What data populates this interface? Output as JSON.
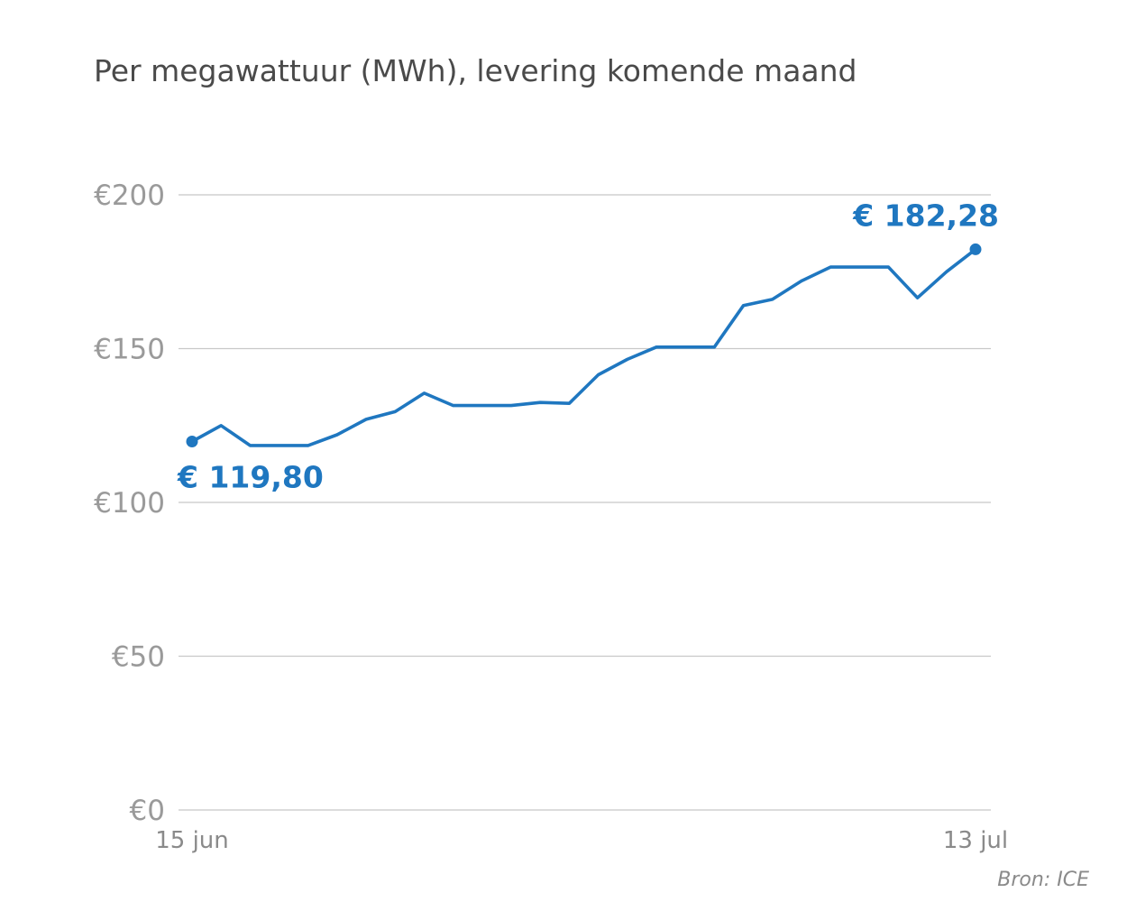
{
  "chart_data": {
    "type": "line",
    "title": "Per megawattuur (MWh), levering komende maand",
    "source": "Bron: ICE",
    "series_color": "#1f77c0",
    "ylim": [
      0,
      200
    ],
    "yticks": [
      {
        "value": 0,
        "label": "€0"
      },
      {
        "value": 50,
        "label": "€50"
      },
      {
        "value": 100,
        "label": "€100"
      },
      {
        "value": 150,
        "label": "€150"
      },
      {
        "value": 200,
        "label": "€200"
      }
    ],
    "xtick_labels": {
      "first": "15 jun",
      "last": "13 jul"
    },
    "grid": true,
    "series": [
      {
        "values": [
          119.8,
          125.0,
          118.5,
          118.5,
          118.5,
          122.0,
          127.0,
          129.5,
          135.5,
          131.5,
          131.5,
          131.5,
          132.5,
          132.2,
          141.5,
          146.5,
          150.5,
          150.5,
          150.5,
          164.0,
          166.0,
          172.0,
          176.5,
          176.5,
          176.5,
          166.5,
          175.0,
          182.28
        ]
      }
    ],
    "annotations": [
      {
        "label": "€ 119,80",
        "index": 0
      },
      {
        "label": "€ 182,28",
        "index": 27
      }
    ]
  }
}
